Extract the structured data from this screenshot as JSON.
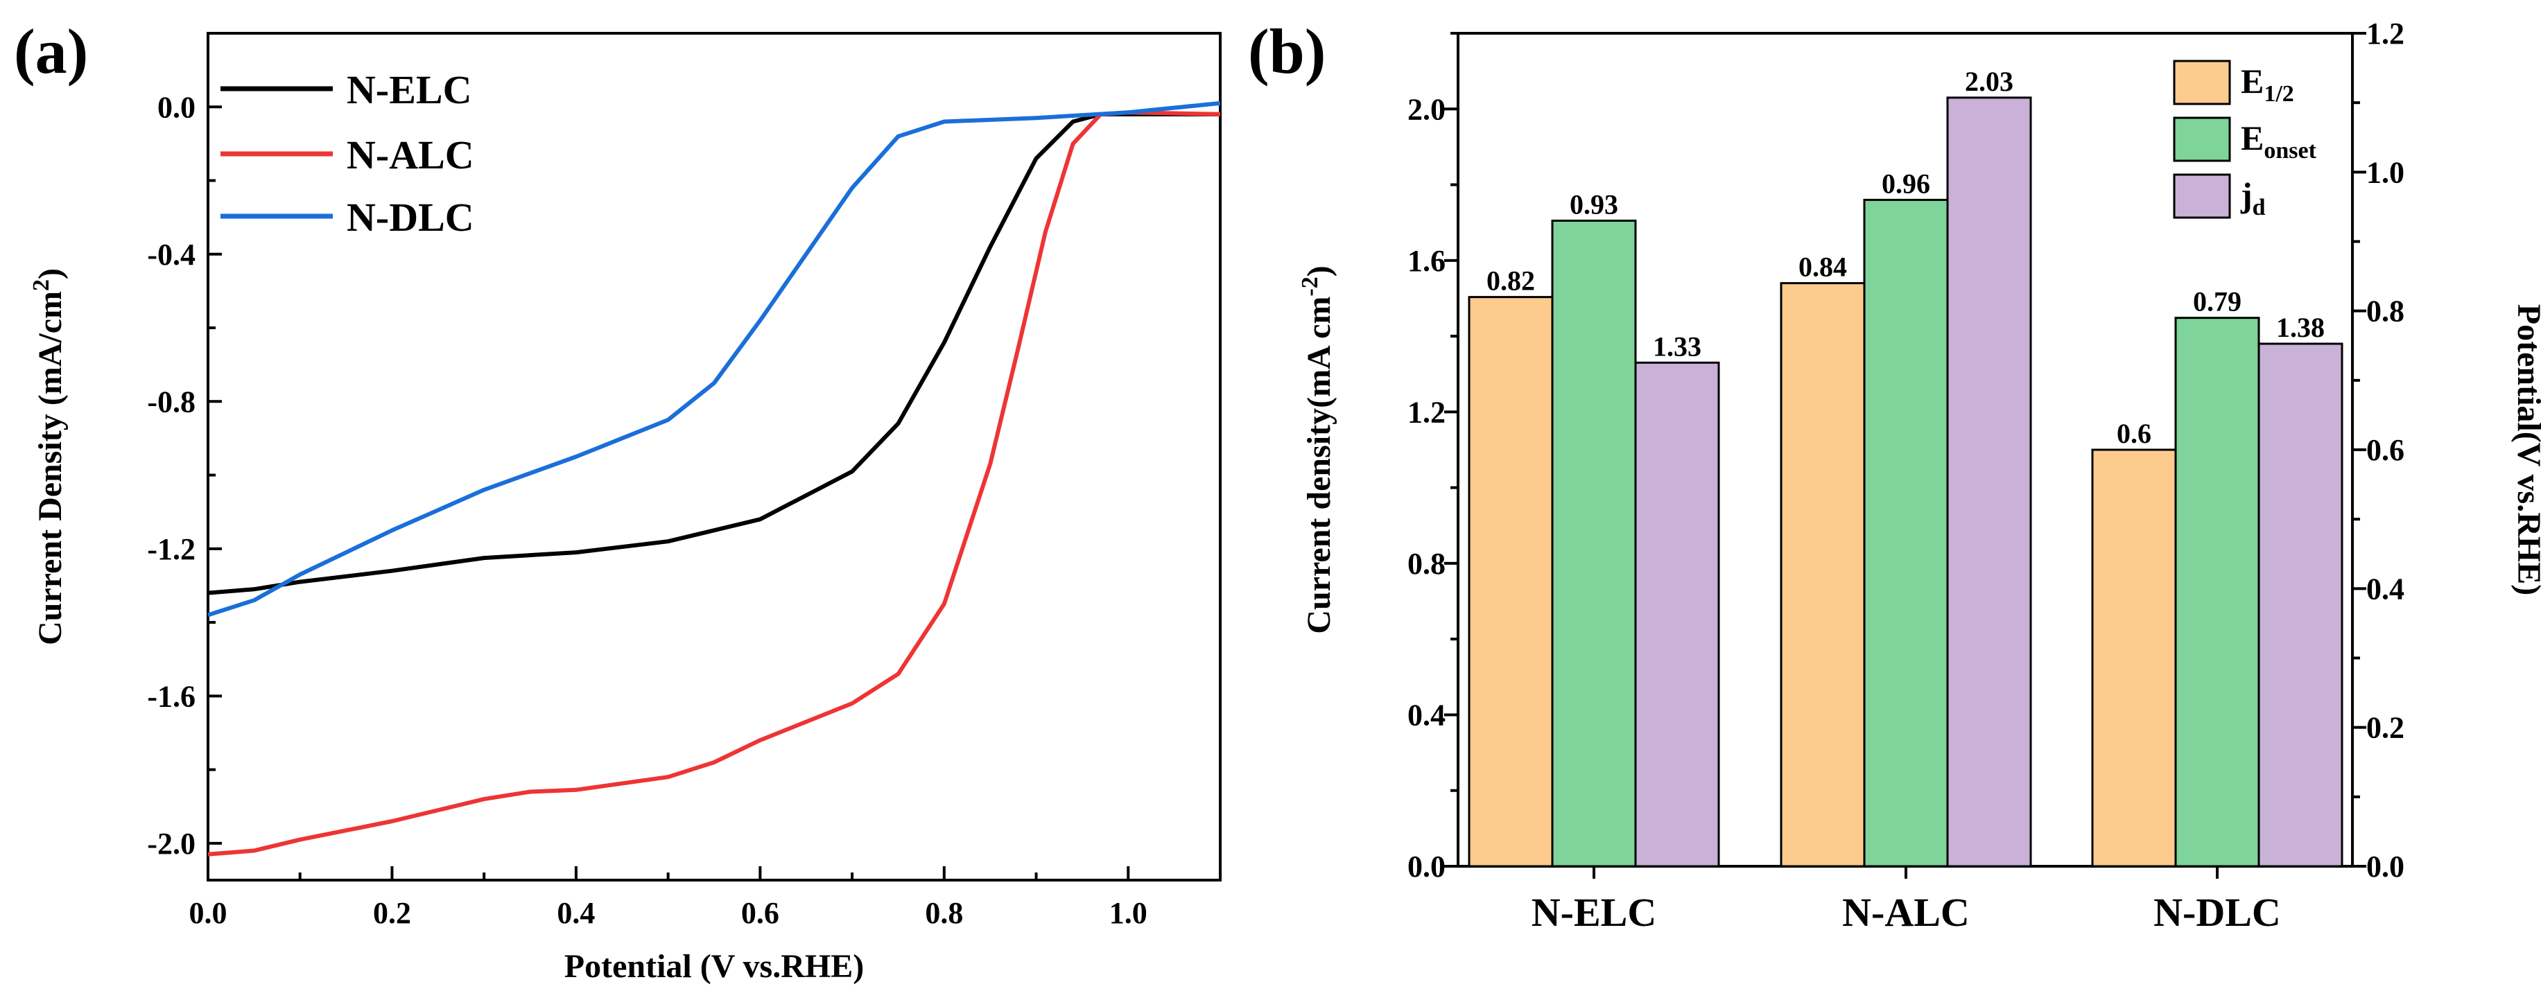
{
  "chart_data": [
    {
      "type": "line",
      "panel_label": "(a)",
      "xlabel": "Potential (V vs.RHE)",
      "ylabel_main": "Current Density (mA/cm",
      "ylabel_sup": "2",
      "ylabel_close": ")",
      "xlim": [
        0,
        1.1
      ],
      "ylim": [
        -2.1,
        0.2
      ],
      "x_ticks": [
        "0.0",
        "0.2",
        "0.4",
        "0.6",
        "0.8",
        "1.0"
      ],
      "y_ticks": [
        "0.0",
        "-0.4",
        "-0.8",
        "-1.2",
        "-1.6",
        "-2.0"
      ],
      "series": [
        {
          "name": "N-ELC",
          "color": "#000000",
          "points": [
            [
              0,
              -1.32
            ],
            [
              0.05,
              -1.31
            ],
            [
              0.1,
              -1.29
            ],
            [
              0.2,
              -1.26
            ],
            [
              0.3,
              -1.225
            ],
            [
              0.4,
              -1.21
            ],
            [
              0.5,
              -1.18
            ],
            [
              0.6,
              -1.12
            ],
            [
              0.7,
              -0.99
            ],
            [
              0.75,
              -0.86
            ],
            [
              0.8,
              -0.64
            ],
            [
              0.85,
              -0.38
            ],
            [
              0.9,
              -0.14
            ],
            [
              0.94,
              -0.04
            ],
            [
              0.97,
              -0.02
            ],
            [
              1.0,
              -0.02
            ],
            [
              1.1,
              -0.02
            ]
          ]
        },
        {
          "name": "N-ALC",
          "color": "#ee3434",
          "points": [
            [
              0,
              -2.03
            ],
            [
              0.05,
              -2.02
            ],
            [
              0.1,
              -1.99
            ],
            [
              0.2,
              -1.94
            ],
            [
              0.3,
              -1.88
            ],
            [
              0.35,
              -1.86
            ],
            [
              0.4,
              -1.855
            ],
            [
              0.5,
              -1.82
            ],
            [
              0.55,
              -1.78
            ],
            [
              0.6,
              -1.72
            ],
            [
              0.7,
              -1.62
            ],
            [
              0.75,
              -1.54
            ],
            [
              0.8,
              -1.35
            ],
            [
              0.85,
              -0.97
            ],
            [
              0.88,
              -0.66
            ],
            [
              0.91,
              -0.34
            ],
            [
              0.94,
              -0.1
            ],
            [
              0.97,
              -0.02
            ],
            [
              1.0,
              -0.015
            ],
            [
              1.1,
              -0.02
            ]
          ]
        },
        {
          "name": "N-DLC",
          "color": "#1a6fd9",
          "points": [
            [
              0,
              -1.38
            ],
            [
              0.05,
              -1.34
            ],
            [
              0.1,
              -1.27
            ],
            [
              0.2,
              -1.15
            ],
            [
              0.3,
              -1.04
            ],
            [
              0.4,
              -0.95
            ],
            [
              0.5,
              -0.85
            ],
            [
              0.55,
              -0.75
            ],
            [
              0.6,
              -0.58
            ],
            [
              0.65,
              -0.4
            ],
            [
              0.7,
              -0.22
            ],
            [
              0.75,
              -0.08
            ],
            [
              0.8,
              -0.04
            ],
            [
              0.9,
              -0.03
            ],
            [
              1.0,
              -0.015
            ],
            [
              1.1,
              0.01
            ]
          ]
        }
      ]
    },
    {
      "type": "bar",
      "panel_label": "(b)",
      "categories": [
        "N-ELC",
        "N-ALC",
        "N-DLC"
      ],
      "ylabel_left_main": "Current density(mA cm",
      "ylabel_left_sup": "-2",
      "ylabel_left_close": ")",
      "ylabel_right": "Potential(V vs.RHE)",
      "ylim_left": [
        0,
        2.2
      ],
      "ylim_right": [
        0,
        1.2
      ],
      "y_ticks_left": [
        "0.0",
        "0.4",
        "0.8",
        "1.2",
        "1.6",
        "2.0"
      ],
      "y_ticks_right": [
        "0.0",
        "0.2",
        "0.4",
        "0.6",
        "0.8",
        "1.0",
        "1.2"
      ],
      "series": [
        {
          "name_main": "E",
          "name_sub": "1/2",
          "axis": "right",
          "color": "#fdcb8d",
          "values": [
            0.82,
            0.84,
            0.6
          ],
          "labels": [
            "0.82",
            "0.84",
            "0.6"
          ]
        },
        {
          "name_main": "E",
          "name_sub": "onset",
          "axis": "right",
          "color": "#7ed49a",
          "values": [
            0.93,
            0.96,
            0.79
          ],
          "labels": [
            "0.93",
            "0.96",
            "0.79"
          ]
        },
        {
          "name_main": "j",
          "name_sub": "d",
          "axis": "left",
          "color": "#c9b1d8",
          "values": [
            1.33,
            2.03,
            1.38
          ],
          "labels": [
            "1.33",
            "2.03",
            "1.38"
          ]
        }
      ]
    }
  ]
}
